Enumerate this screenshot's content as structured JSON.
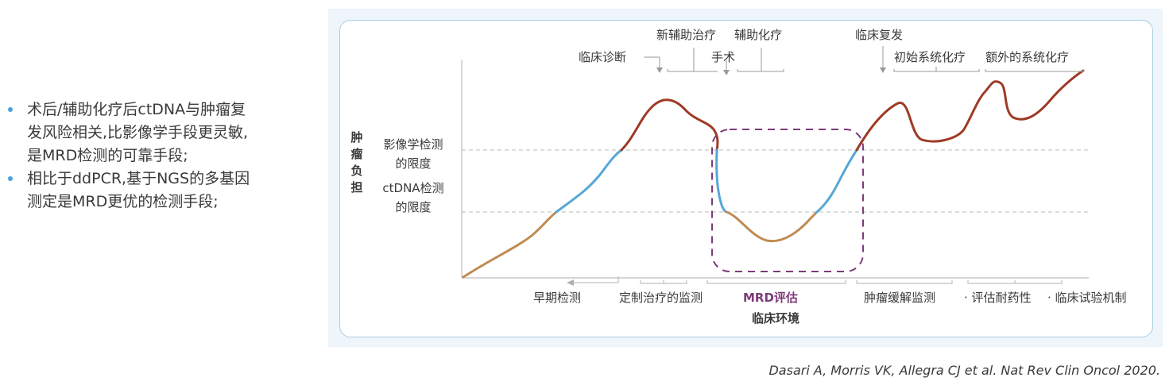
{
  "bullets": [
    {
      "lines": [
        "术后/辅助化疗后ctDNA与肿瘤复",
        "发风险相关,比影像学手段更灵敏,",
        "是MRD检测的可靠手段;"
      ]
    },
    {
      "lines": [
        "相比于ddPCR,基于NGS的多基因",
        "测定是MRD更优的检测手段;"
      ]
    }
  ],
  "diagram": {
    "y_axis_label": [
      "肿",
      "瘤",
      "负",
      "担"
    ],
    "threshold_imaging": [
      "影像学检测",
      "的限度"
    ],
    "threshold_ctdna": [
      "ctDNA检测",
      "的限度"
    ],
    "events": {
      "diagnosis": "临床诊断",
      "neoadjuvant": "新辅助治疗",
      "adjuvant": "辅助化疗",
      "surgery": "手术",
      "relapse": "临床复发",
      "initial_systemic": "初始系统化疗",
      "additional_systemic": "额外的系统化疗"
    },
    "bottom_labels": {
      "early_detection": "早期检测",
      "monitoring_tailored": "定制治疗的监测",
      "mrd": "MRD评估",
      "remission_monitoring": "肿瘤缓解监测",
      "resistance": "· 评估耐药性",
      "trial": "· 临床试验机制"
    },
    "x_axis_label": "临床环境",
    "colors": {
      "brown": "#c08a52",
      "blue": "#57a7d8",
      "red": "#9e3a26",
      "mrd_box": "#7d3a7a",
      "bullet_dot": "#4ba3d9"
    }
  },
  "citation": "Dasari A, Morris VK, Allegra CJ et al. Nat Rev Clin Oncol 2020."
}
